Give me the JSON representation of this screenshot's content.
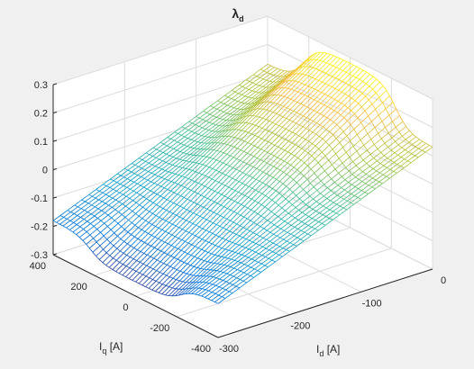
{
  "chart_data": {
    "type": "surface",
    "title": {
      "main": "λ",
      "sub": "d"
    },
    "xlabel": {
      "main": "I",
      "sub": "d",
      "unit": " [A]"
    },
    "ylabel": {
      "main": "I",
      "sub": "q",
      "unit": " [A]"
    },
    "zlabel": "",
    "xlim": [
      -300,
      0
    ],
    "ylim": [
      -400,
      400
    ],
    "zlim": [
      -0.3,
      0.3
    ],
    "xticks": [
      -300,
      -200,
      -100,
      0
    ],
    "yticks": [
      -400,
      -200,
      0,
      200,
      400
    ],
    "zticks": [
      -0.3,
      -0.2,
      -0.1,
      0,
      0.1,
      0.2,
      0.3
    ],
    "xtick_labels": [
      "-300",
      "-200",
      "-100",
      "0"
    ],
    "ytick_labels": [
      "-400",
      "-200",
      "0",
      "200",
      "400"
    ],
    "ztick_labels": [
      "-0.3",
      "-0.2",
      "-0.1",
      "0",
      "0.1",
      "0.2",
      "0.3"
    ],
    "grid": true,
    "colormap": "parula",
    "colors": {
      "background": "#f0f0f0",
      "axes": "#ffffff",
      "grid": "#dcdcdc",
      "axis_line": "#262626"
    },
    "surface": {
      "description_values": "lambda_d vs Id and Iq; approx. -0.18 at Id=-300 (|Iq|=400), -0.25 at Id=-300 (Iq=0), +0.13 at Id=0 (|Iq|=400), +0.28 at Id=0 (Iq=0)",
      "corner_values": {
        "id_m300_iq_m400": -0.18,
        "id_m300_iq_0": -0.25,
        "id_0_iq_m400": 0.13,
        "id_0_iq_0": 0.28,
        "id_m300_iq_400": -0.18,
        "id_0_iq_400": 0.13
      },
      "x_samples": 31,
      "y_samples": 51
    }
  }
}
